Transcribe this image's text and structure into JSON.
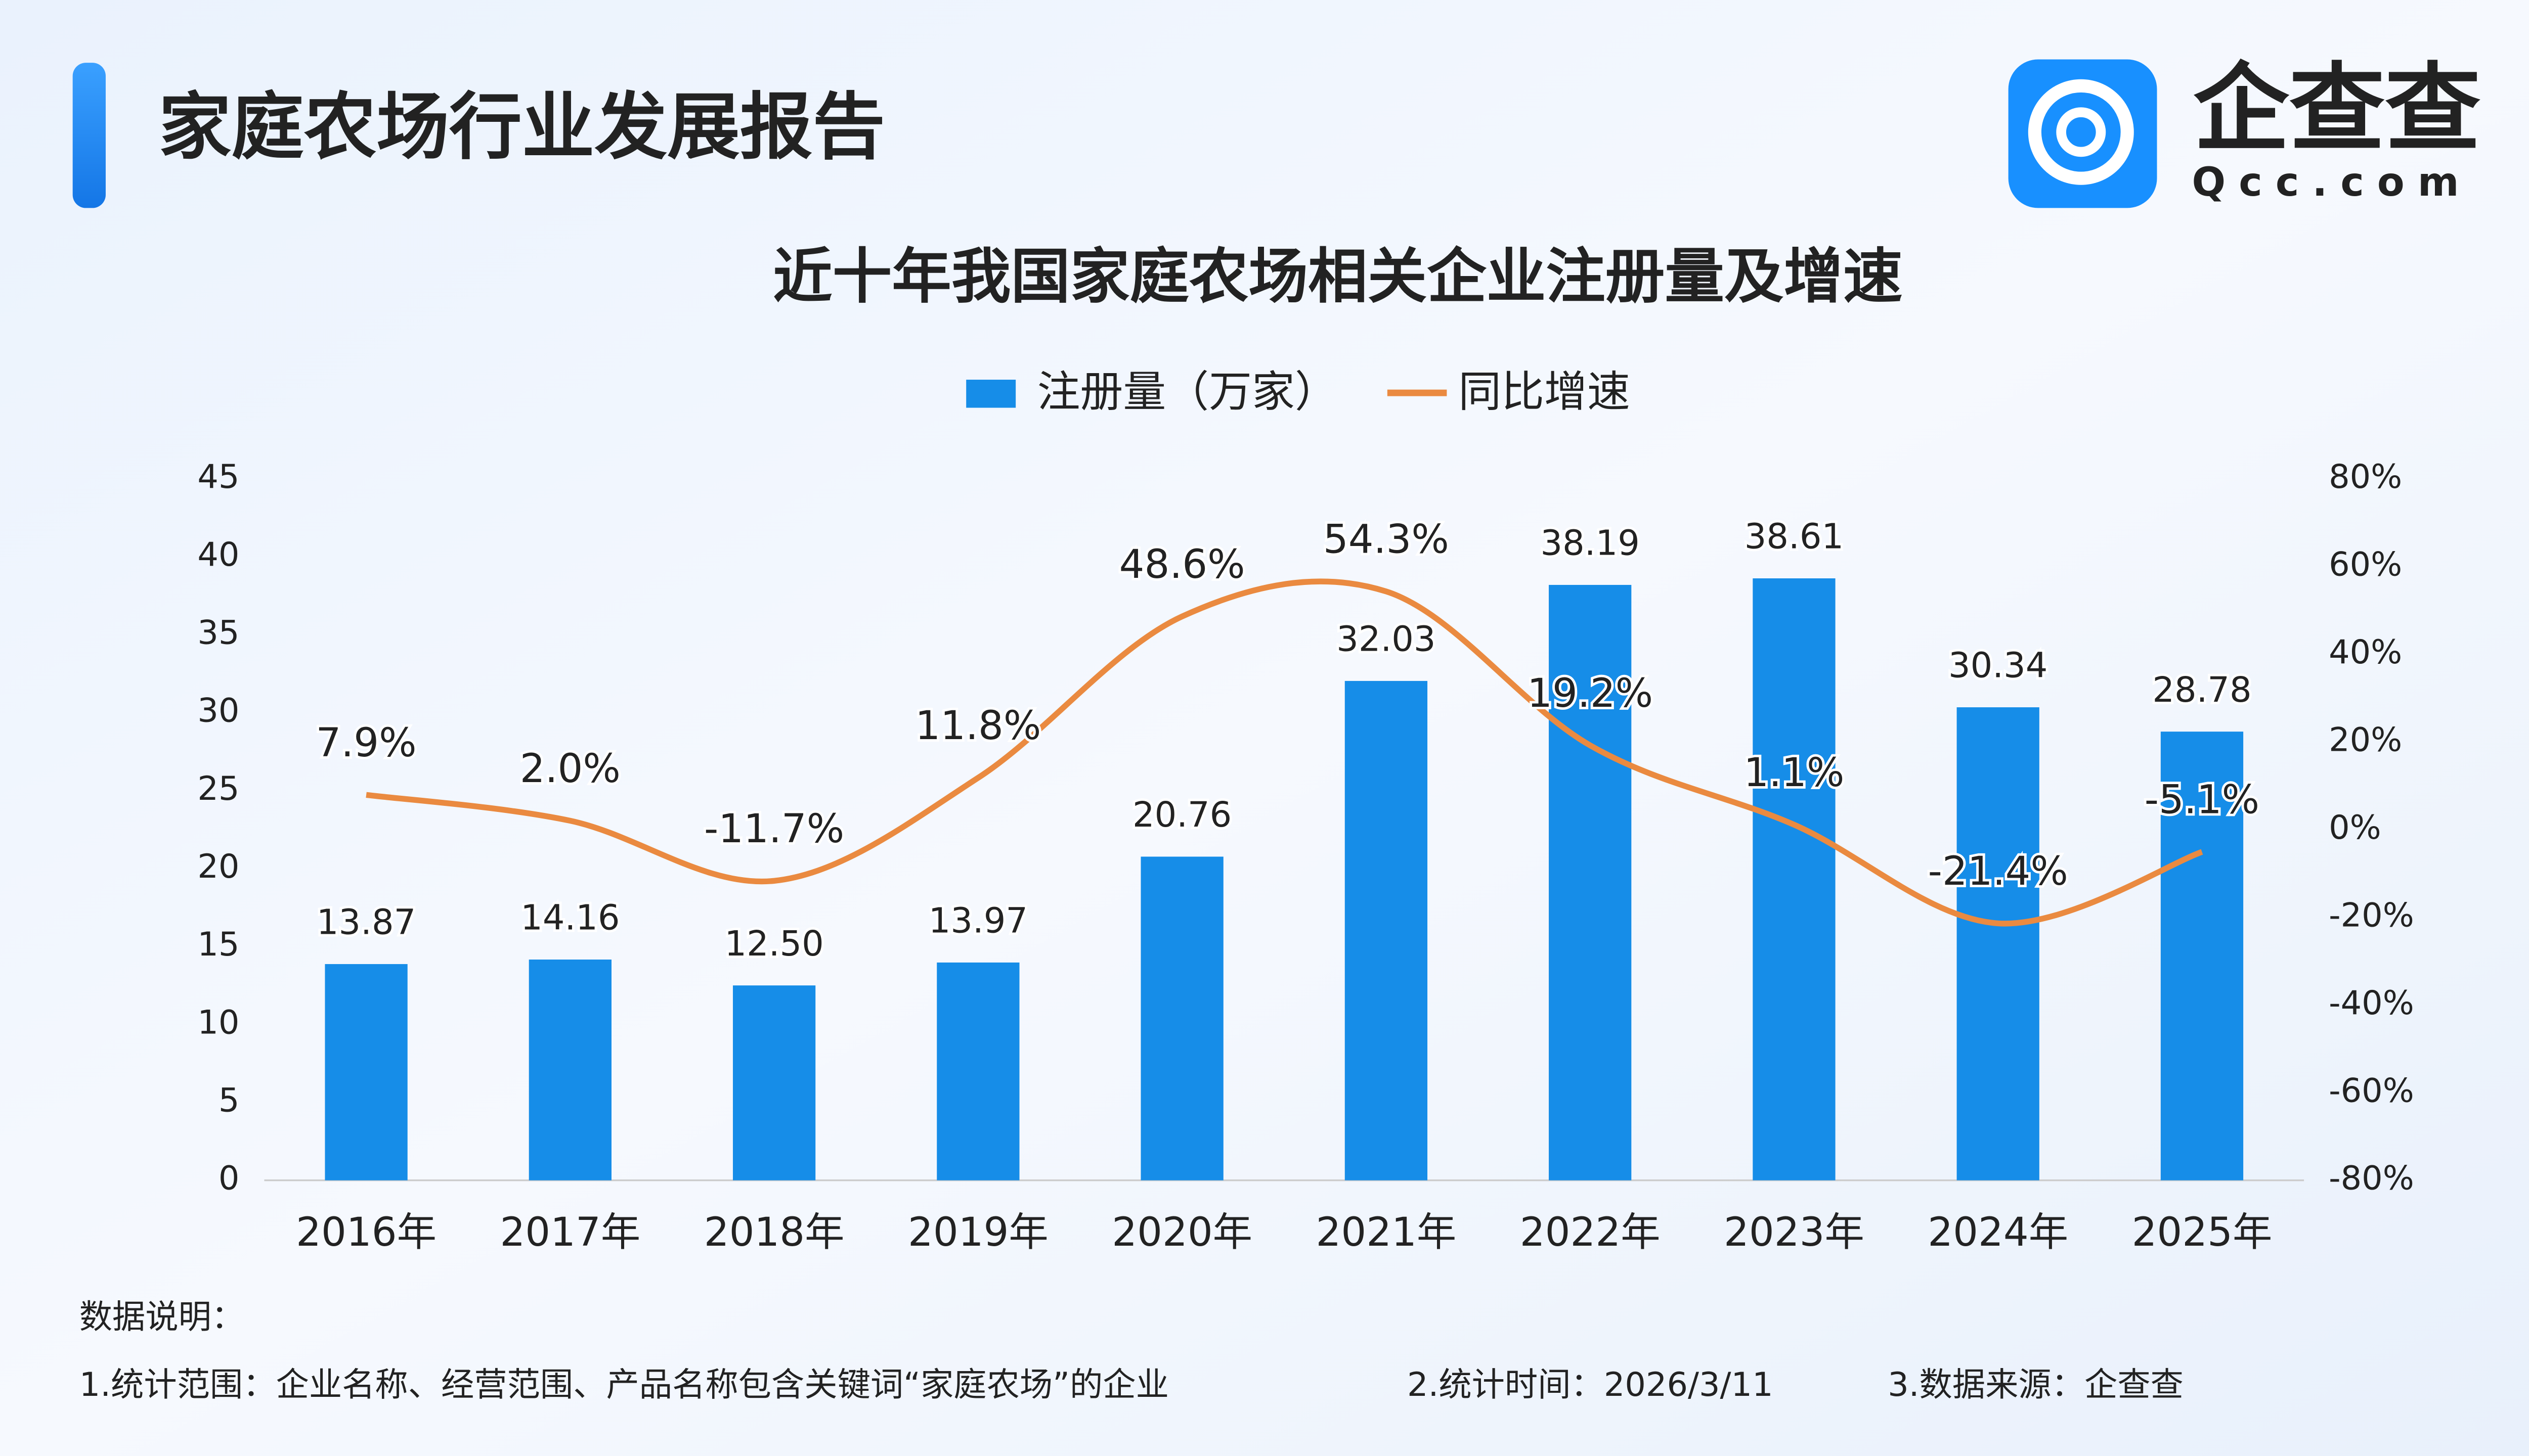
{
  "header": {
    "title": "家庭农场行业发展报告",
    "logo_text": "企查查",
    "logo_sub": "Qcc.com"
  },
  "chart_data": {
    "type": "bar_line",
    "title": "近十年我国家庭农场相关企业注册量及增速",
    "categories": [
      "2016年",
      "2017年",
      "2018年",
      "2019年",
      "2020年",
      "2021年",
      "2022年",
      "2023年",
      "2024年",
      "2025年"
    ],
    "series": [
      {
        "name": "注册量（万家）",
        "type": "bar",
        "color": "#168de8",
        "values": [
          13.87,
          14.16,
          12.5,
          13.97,
          20.76,
          32.03,
          38.19,
          38.61,
          30.34,
          28.78
        ],
        "value_labels": [
          "13.87",
          "14.16",
          "12.50",
          "13.97",
          "20.76",
          "32.03",
          "38.19",
          "38.61",
          "30.34",
          "28.78"
        ]
      },
      {
        "name": "同比增速",
        "type": "line",
        "axis": "y2",
        "color": "#ea8a40",
        "values": [
          7.9,
          2.0,
          -11.7,
          11.8,
          48.6,
          54.3,
          19.2,
          1.1,
          -21.4,
          -5.1
        ],
        "value_labels": [
          "7.9%",
          "2.0%",
          "-11.7%",
          "11.8%",
          "48.6%",
          "54.3%",
          "19.2%",
          "1.1%",
          "-21.4%",
          "-5.1%"
        ]
      }
    ],
    "ylim": [
      0,
      45
    ],
    "yticks": [
      0,
      5,
      10,
      15,
      20,
      25,
      30,
      35,
      40,
      45
    ],
    "y2lim": [
      -80,
      80
    ],
    "y2ticks": [
      {
        "value": -80,
        "label": "-80%"
      },
      {
        "value": -60,
        "label": "-60%"
      },
      {
        "value": -40,
        "label": "-40%"
      },
      {
        "value": -20,
        "label": "-20%"
      },
      {
        "value": 0,
        "label": "0%"
      },
      {
        "value": 20,
        "label": "20%"
      },
      {
        "value": 40,
        "label": "40%"
      },
      {
        "value": 60,
        "label": "60%"
      },
      {
        "value": 80,
        "label": "80%"
      }
    ],
    "grid": false,
    "legend": "top"
  },
  "notes": {
    "heading": "数据说明：",
    "items": [
      "1.统计范围：企业名称、经营范围、产品名称包含关键词“家庭农场”的企业",
      "2.统计时间：2026/3/11",
      "3.数据来源：企查查"
    ]
  }
}
